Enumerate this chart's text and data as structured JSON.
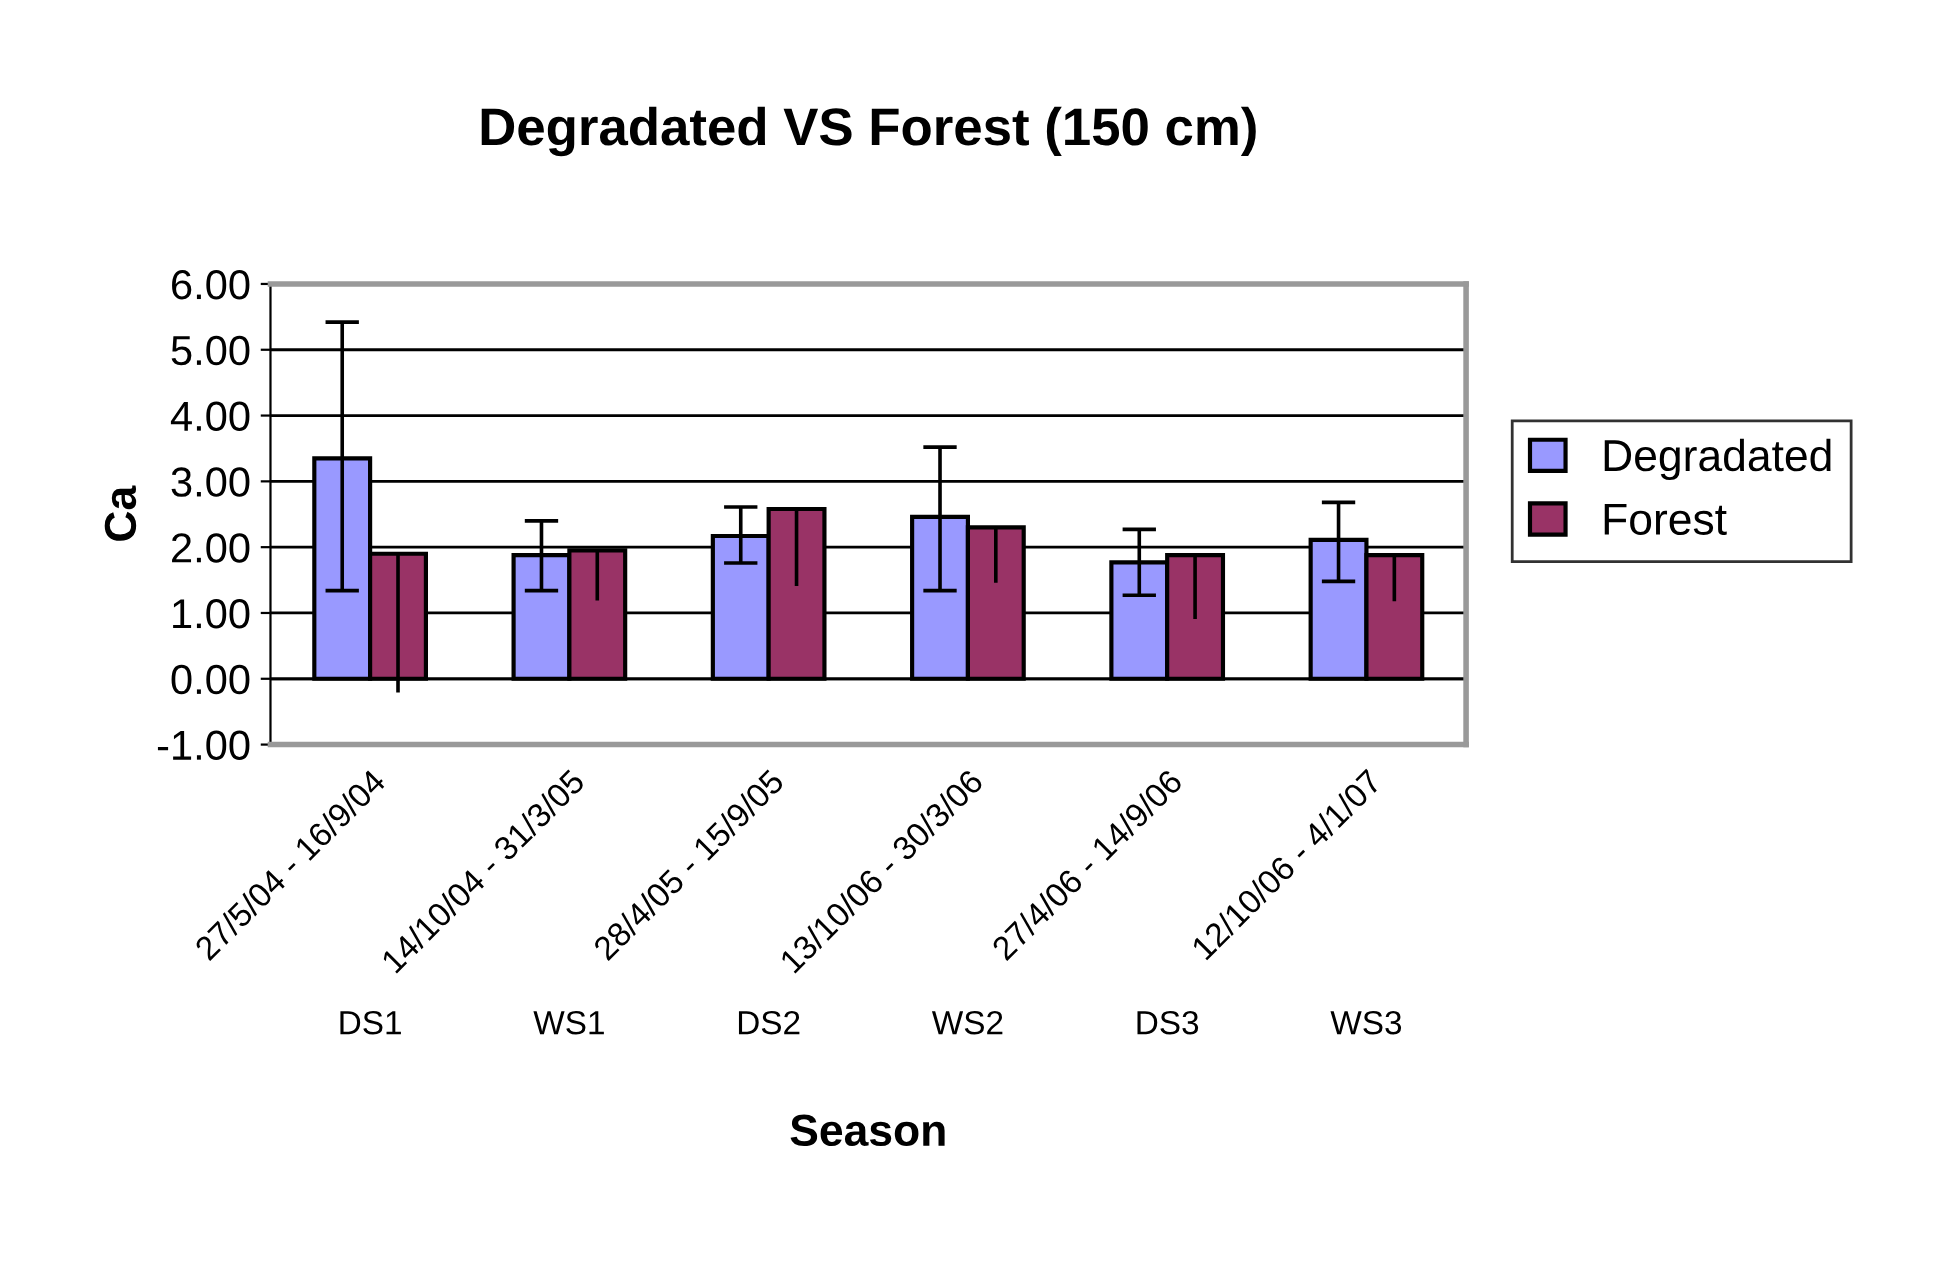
{
  "chart_data": {
    "type": "bar",
    "title": "Degradated VS Forest (150 cm)",
    "xlabel": "Season",
    "ylabel": "Ca",
    "categories": [
      "27/5/04 - 16/9/04",
      "14/10/04 - 31/3/05",
      "28/4/05 - 15/9/05",
      "13/10/06 - 30/3/06",
      "27/4/06 - 14/9/06",
      "12/10/06 - 4/1/07"
    ],
    "series": [
      {
        "name": "Degradated",
        "color": "#9999ff",
        "values": [
          3.35,
          1.88,
          2.17,
          2.46,
          1.77,
          2.11
        ],
        "errors": [
          [
            1.34,
            5.42
          ],
          [
            1.34,
            2.4
          ],
          [
            1.76,
            2.61
          ],
          [
            1.34,
            3.52
          ],
          [
            1.27,
            2.27
          ],
          [
            1.48,
            2.68
          ]
        ]
      },
      {
        "name": "Forest",
        "color": "#993366",
        "values": [
          1.9,
          1.95,
          2.58,
          2.3,
          1.88,
          1.88
        ],
        "errors": [
          [
            -0.21,
            1.9
          ],
          [
            1.19,
            1.95
          ],
          [
            1.41,
            2.58
          ],
          [
            1.46,
            2.3
          ],
          [
            0.91,
            1.88
          ],
          [
            1.18,
            1.88
          ]
        ]
      }
    ],
    "annotations": [
      "DS1",
      "WS1",
      "DS2",
      "WS2",
      "DS3",
      "WS3"
    ],
    "ylim": [
      -1,
      6
    ],
    "yticks": [
      {
        "value": -1,
        "label": "-1.00"
      },
      {
        "value": 0,
        "label": "0.00"
      },
      {
        "value": 1,
        "label": "1.00"
      },
      {
        "value": 2,
        "label": "2.00"
      },
      {
        "value": 3,
        "label": "3.00"
      },
      {
        "value": 4,
        "label": "4.00"
      },
      {
        "value": 5,
        "label": "5.00"
      },
      {
        "value": 6,
        "label": "6.00"
      }
    ],
    "grid": "y",
    "legend": "right"
  }
}
